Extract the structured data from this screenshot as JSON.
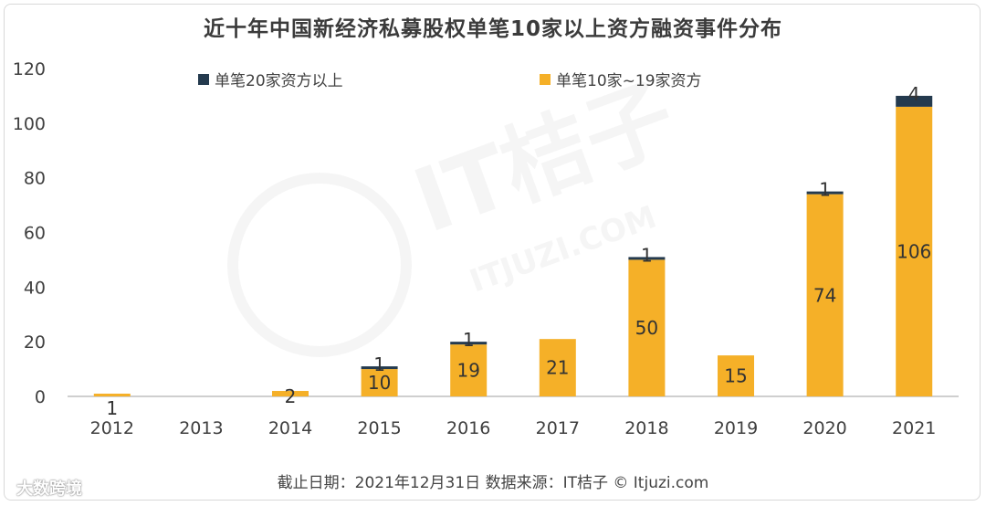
{
  "page": {
    "title": "近十年中国新经济私募股权单笔10家以上资方融资事件分布",
    "source": "截止日期：2021年12月31日    数据来源：IT桔子 © Itjuzi.com",
    "watermark_brand": "大数跨境",
    "watermark_logo": "IT桔子",
    "watermark_url": "ITJUZI.COM"
  },
  "chart_data": {
    "type": "bar",
    "stacked": true,
    "title": "近十年中国新经济私募股权单笔10家以上资方融资事件分布",
    "categories": [
      "2012",
      "2013",
      "2014",
      "2015",
      "2016",
      "2017",
      "2018",
      "2019",
      "2020",
      "2021"
    ],
    "series": [
      {
        "name": "单笔10家~19家资方",
        "color": "#F5B028",
        "values": [
          1,
          0,
          2,
          10,
          19,
          21,
          50,
          15,
          74,
          106
        ],
        "labels": [
          "1",
          "",
          "2",
          "10",
          "19",
          "21",
          "50",
          "15",
          "74",
          "106"
        ]
      },
      {
        "name": "单笔20家资方以上",
        "color": "#243A4E",
        "values": [
          0,
          0,
          0,
          1,
          1,
          0,
          1,
          0,
          1,
          4
        ],
        "labels": [
          "",
          "",
          "",
          "1",
          "1",
          "",
          "1",
          "",
          "1",
          "4"
        ]
      }
    ],
    "legend_order": [
      1,
      0
    ],
    "legend_position": "top",
    "ylim": [
      0,
      120
    ],
    "yticks": [
      0,
      20,
      40,
      60,
      80,
      100,
      120
    ],
    "grid": false
  }
}
